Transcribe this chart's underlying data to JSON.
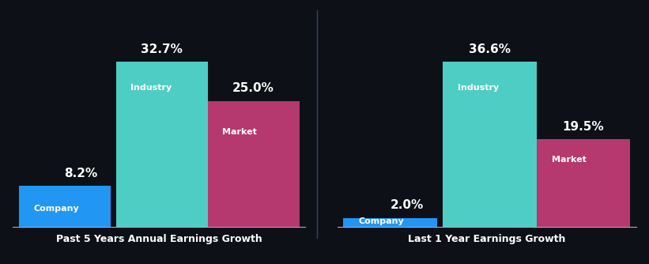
{
  "background_color": "#0d1117",
  "chart1_title": "Past 5 Years Annual Earnings Growth",
  "chart2_title": "Last 1 Year Earnings Growth",
  "company_color": "#2196f3",
  "industry_color": "#4ecdc4",
  "market_color": "#b5386e",
  "label_color": "#ffffff",
  "title_color": "#ffffff",
  "bottom_line_color": "#aaaacc",
  "chart1": {
    "company_value": 8.2,
    "industry_value": 32.7,
    "market_value": 25.0
  },
  "chart2": {
    "company_value": 2.0,
    "industry_value": 36.6,
    "market_value": 19.5
  },
  "bar_width": 0.32,
  "positions": [
    0.18,
    0.52,
    0.84
  ],
  "xlim": [
    0.0,
    1.02
  ],
  "value_fontsize": 11,
  "label_fontsize": 8,
  "title_fontsize": 9
}
